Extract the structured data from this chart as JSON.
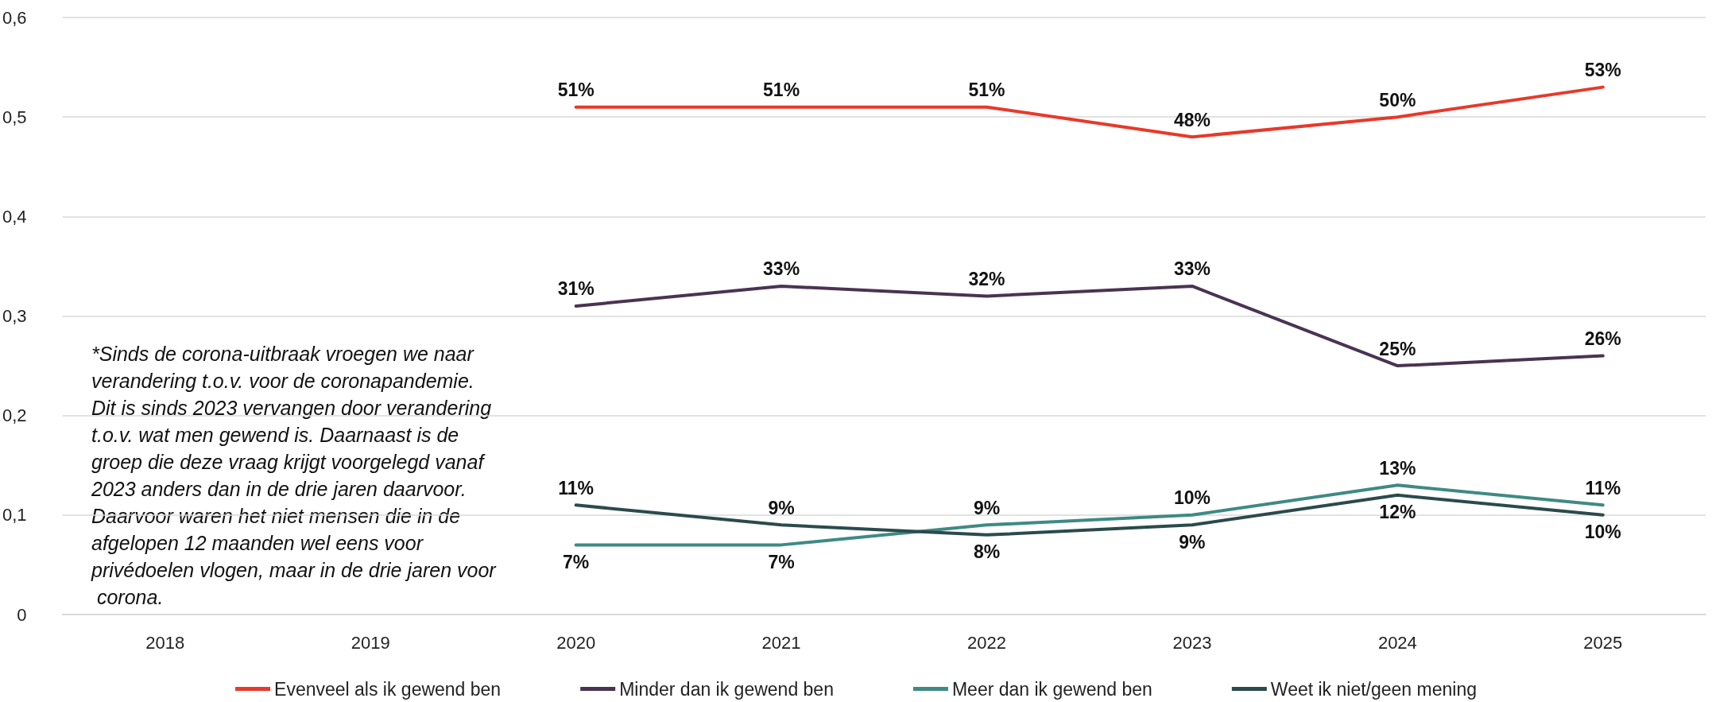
{
  "chart_data": {
    "type": "line",
    "categories": [
      "2018",
      "2019",
      "2020",
      "2021",
      "2022",
      "2023",
      "2024",
      "2025"
    ],
    "series": [
      {
        "name": "Evenveel als ik gewend ben",
        "color": "#e8392a",
        "values": [
          null,
          null,
          0.51,
          0.51,
          0.51,
          0.48,
          0.5,
          0.53
        ],
        "value_labels": [
          null,
          null,
          "51%",
          "51%",
          "51%",
          "48%",
          "50%",
          "53%"
        ]
      },
      {
        "name": "Minder dan ik gewend ben",
        "color": "#4a3352",
        "values": [
          null,
          null,
          0.31,
          0.33,
          0.32,
          0.33,
          0.25,
          0.26
        ],
        "value_labels": [
          null,
          null,
          "31%",
          "33%",
          "32%",
          "33%",
          "25%",
          "26%"
        ]
      },
      {
        "name": "Meer dan ik gewend ben",
        "color": "#3f8a84",
        "values": [
          null,
          null,
          0.07,
          0.07,
          0.09,
          0.1,
          0.13,
          0.11
        ],
        "value_labels": [
          null,
          null,
          "7%",
          "7%",
          "9%",
          "10%",
          "13%",
          "11%"
        ]
      },
      {
        "name": "Weet ik niet/geen mening",
        "color": "#2b4a4c",
        "values": [
          null,
          null,
          0.11,
          0.09,
          0.08,
          0.09,
          0.12,
          0.1
        ],
        "value_labels": [
          null,
          null,
          "11%",
          "9%",
          "8%",
          "9%",
          "12%",
          "10%"
        ]
      }
    ],
    "ylim": [
      0,
      0.6
    ],
    "yticks": [
      {
        "value": 0,
        "label": "0"
      },
      {
        "value": 0.1,
        "label": "0,1"
      },
      {
        "value": 0.2,
        "label": "0,2"
      },
      {
        "value": 0.3,
        "label": "0,3"
      },
      {
        "value": 0.4,
        "label": "0,4"
      },
      {
        "value": 0.5,
        "label": "0,5"
      },
      {
        "value": 0.6,
        "label": "0,6"
      }
    ],
    "grid": "y",
    "legend": "bottom",
    "marker": "none",
    "line_style": "solid",
    "annotations": [
      "*Sinds de corona-uitbraak vroegen we naar verandering t.o.v. voor de coronapandemie. Dit is sinds 2023 vervangen door verandering t.o.v. wat men gewend is. Daarnaast is de groep die deze vraag krijgt voorgelegd vanaf 2023 anders dan in de drie jaren daarvoor. Daarvoor waren het niet mensen die in de afgelopen 12 maanden wel eens voor privédoelen vlogen, maar in de drie jaren voor corona."
    ]
  }
}
